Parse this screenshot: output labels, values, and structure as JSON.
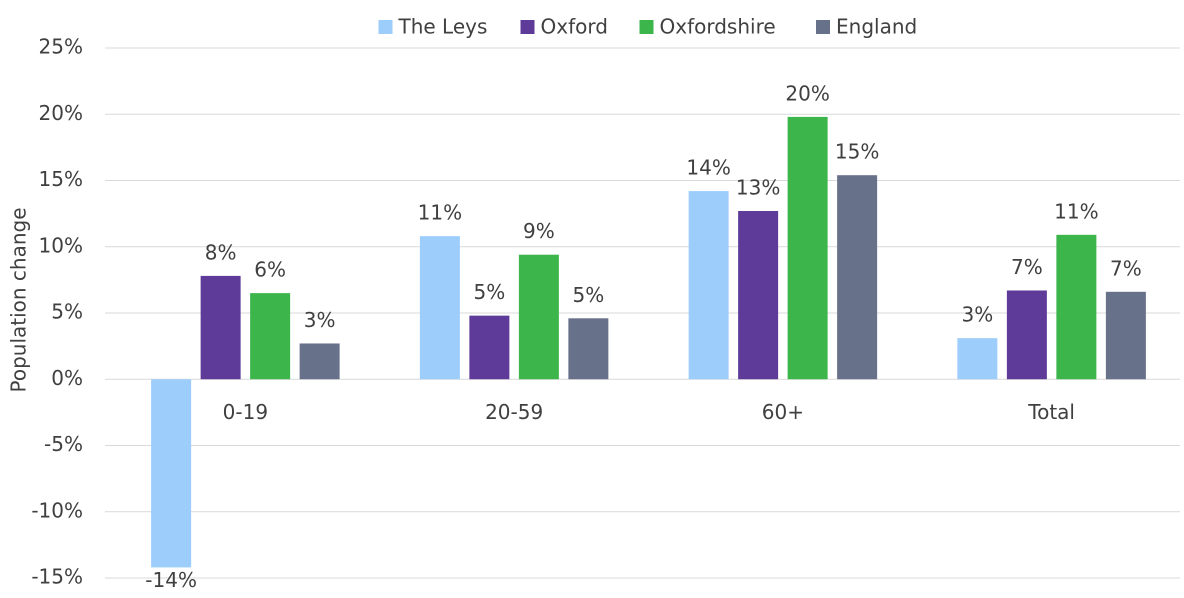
{
  "chart_data": {
    "type": "bar",
    "ylabel": "Population change",
    "categories": [
      "0-19",
      "20-59",
      "60+",
      "Total"
    ],
    "series": [
      {
        "name": "The Leys",
        "color": "#9dcdfb",
        "values": [
          -14.2,
          10.8,
          14.2,
          3.1
        ],
        "value_labels": [
          "-14%",
          "11%",
          "14%",
          "3%"
        ]
      },
      {
        "name": "Oxford",
        "color": "#5f3b99",
        "values": [
          7.8,
          4.8,
          12.7,
          6.7
        ],
        "value_labels": [
          "8%",
          "5%",
          "13%",
          "7%"
        ]
      },
      {
        "name": "Oxfordshire",
        "color": "#3cb54a",
        "values": [
          6.5,
          9.4,
          19.8,
          10.9
        ],
        "value_labels": [
          "6%",
          "9%",
          "20%",
          "11%"
        ]
      },
      {
        "name": "England",
        "color": "#68718a",
        "values": [
          2.7,
          4.6,
          15.4,
          6.6
        ],
        "value_labels": [
          "3%",
          "5%",
          "15%",
          "7%"
        ]
      }
    ],
    "ylim": [
      -15,
      25
    ],
    "yticks": [
      {
        "value": -15,
        "label": "-15%"
      },
      {
        "value": -10,
        "label": "-10%"
      },
      {
        "value": -5,
        "label": "-5%"
      },
      {
        "value": 0,
        "label": "0%"
      },
      {
        "value": 5,
        "label": "5%"
      },
      {
        "value": 10,
        "label": "10%"
      },
      {
        "value": 15,
        "label": "15%"
      },
      {
        "value": 20,
        "label": "20%"
      },
      {
        "value": 25,
        "label": "25%"
      }
    ],
    "grid": true,
    "legend": "top"
  }
}
